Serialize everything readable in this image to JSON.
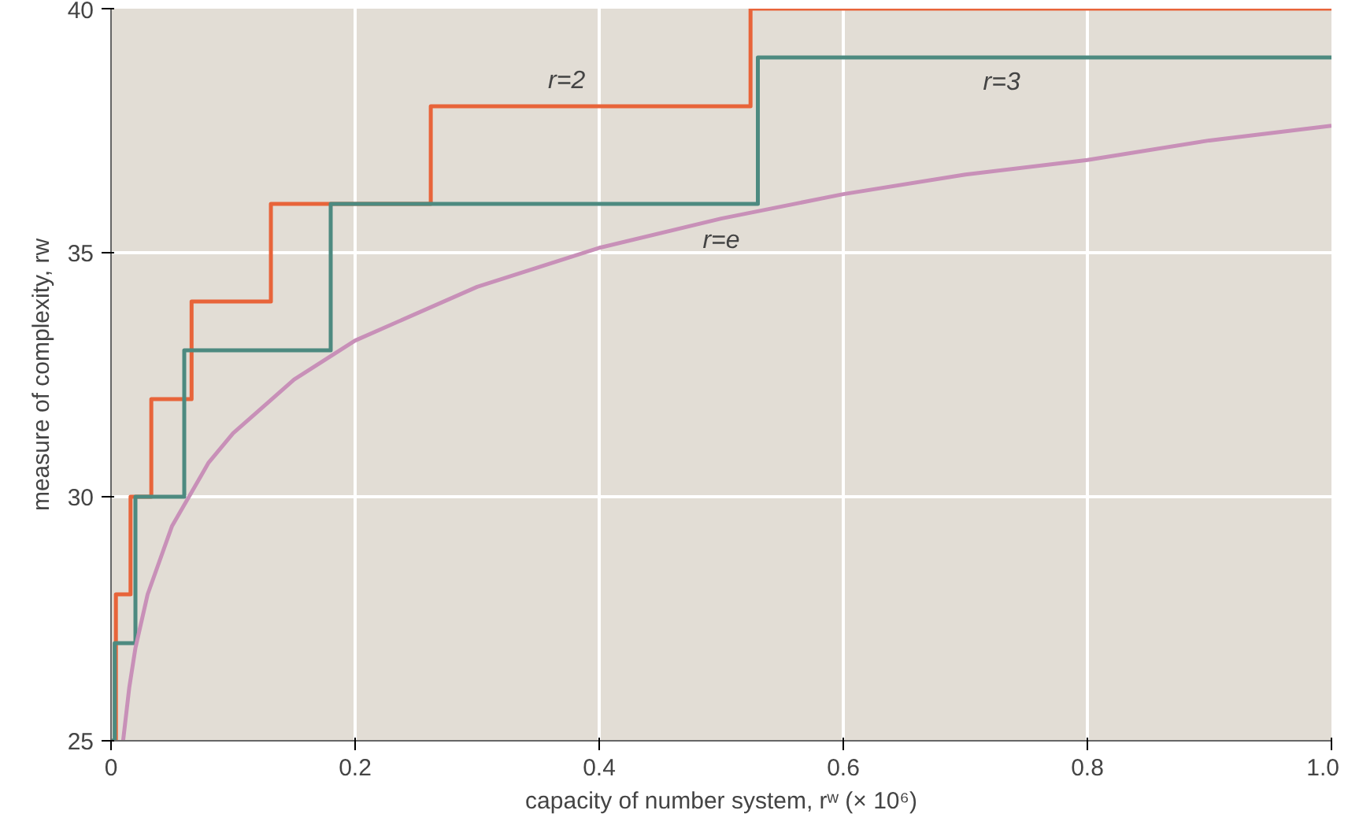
{
  "chart_data": {
    "type": "step",
    "xlabel": "capacity of number system, rʷ (× 10⁶)",
    "ylabel": "measure of complexity, rw",
    "series": [
      {
        "name": "r=2",
        "color": "#e8643a",
        "x": [
          0,
          0.004,
          0.016,
          0.033,
          0.066,
          0.131,
          0.262,
          0.524,
          1.0
        ],
        "values": [
          25,
          28,
          30,
          32,
          34,
          36,
          38,
          40,
          40
        ]
      },
      {
        "name": "r=3",
        "color": "#4d8a80",
        "x": [
          0,
          0.003,
          0.02,
          0.06,
          0.18,
          0.53,
          1.0
        ],
        "values": [
          25,
          27,
          30,
          33,
          36,
          39,
          39
        ]
      },
      {
        "type": "line",
        "name": "r=e",
        "color": "#c890b8",
        "x": [
          0.0099,
          0.015,
          0.02,
          0.03,
          0.05,
          0.08,
          0.1,
          0.15,
          0.2,
          0.3,
          0.4,
          0.5,
          0.6,
          0.7,
          0.8,
          0.9,
          1.0
        ],
        "values": [
          25,
          26.1,
          26.9,
          28.0,
          29.4,
          30.7,
          31.3,
          32.4,
          33.2,
          34.3,
          35.1,
          35.7,
          36.2,
          36.6,
          36.9,
          37.3,
          37.6
        ]
      }
    ],
    "xlim": [
      0,
      1.0
    ],
    "ylim": [
      25,
      40
    ],
    "xticks": [
      0,
      0.2,
      0.4,
      0.6,
      0.8,
      {
        "value": 1.0,
        "label": "1.0"
      }
    ],
    "yticks": [
      25,
      30,
      35,
      40
    ],
    "grid": true
  }
}
